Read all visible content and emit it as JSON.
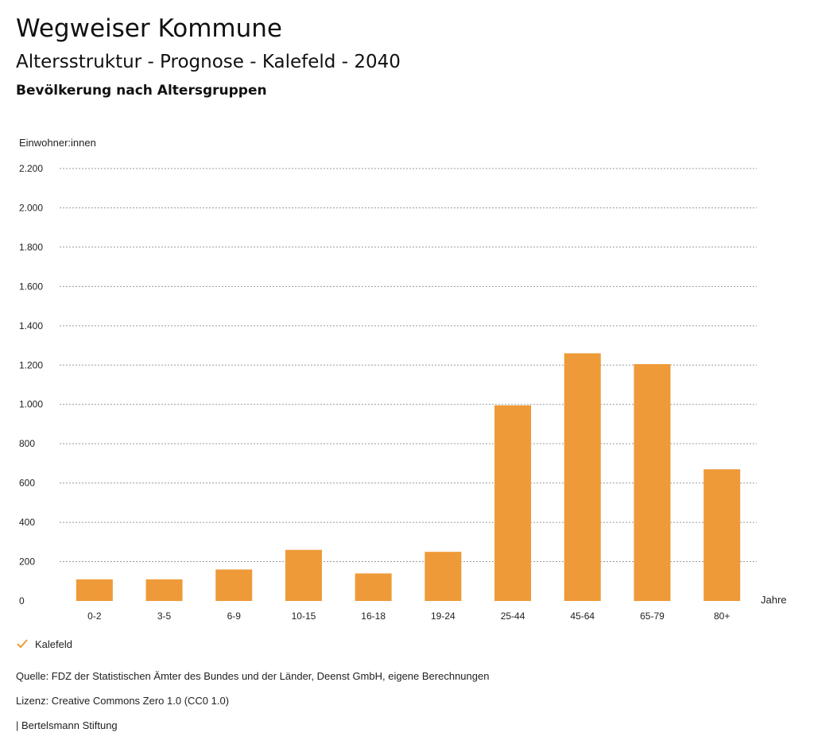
{
  "header": {
    "brand": "Wegweiser Kommune",
    "title": "Altersstruktur - Prognose - Kalefeld - 2040",
    "subtitle": "Bevölkerung nach Altersgruppen"
  },
  "chart_data": {
    "type": "bar",
    "ylabel": "Einwohner:innen",
    "xlabel": "Jahre",
    "categories": [
      "0-2",
      "3-5",
      "6-9",
      "10-15",
      "16-18",
      "19-24",
      "25-44",
      "45-64",
      "65-79",
      "80+"
    ],
    "series": [
      {
        "name": "Kalefeld",
        "values": [
          110,
          110,
          160,
          260,
          140,
          250,
          995,
          1260,
          1205,
          670
        ],
        "color": "#ee9a38"
      }
    ],
    "ylim": [
      0,
      2200
    ],
    "yticks": [
      0,
      200,
      400,
      600,
      800,
      1000,
      1200,
      1400,
      1600,
      1800,
      2000,
      2200
    ],
    "ytick_labels": [
      "0",
      "200",
      "400",
      "600",
      "800",
      "1.000",
      "1.200",
      "1.400",
      "1.600",
      "1.800",
      "2.000",
      "2.200"
    ],
    "grid": true,
    "legend_position": "bottom-left"
  },
  "legend": {
    "label": "Kalefeld",
    "icon": "checkmark-icon",
    "color": "#ee9a38"
  },
  "footer": {
    "source": "Quelle: FDZ der Statistischen Ämter des Bundes und der Länder, Deenst GmbH, eigene Berechnungen",
    "license": "Lizenz: Creative Commons Zero 1.0 (CC0 1.0)",
    "publisher": "| Bertelsmann Stiftung"
  }
}
